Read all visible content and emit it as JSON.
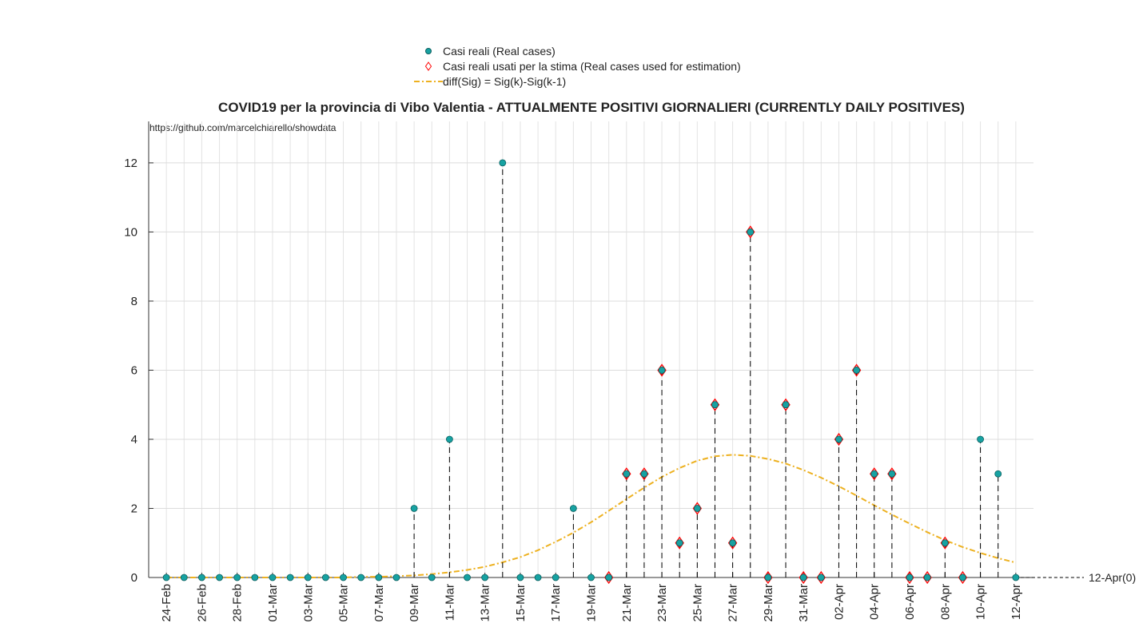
{
  "chart_data": {
    "type": "stem",
    "title": "COVID19 per la provincia di Vibo Valentia - ATTUALMENTE POSITIVI GIORNALIERI (CURRENTLY DAILY POSITIVES)",
    "source": "https://github.com/marcelchiarello/showdata",
    "annotation": "12-Apr(0)",
    "categories": [
      "24-Feb",
      null,
      "26-Feb",
      null,
      "28-Feb",
      null,
      "01-Mar",
      null,
      "03-Mar",
      null,
      "05-Mar",
      null,
      "07-Mar",
      null,
      "09-Mar",
      null,
      "11-Mar",
      null,
      "13-Mar",
      null,
      "15-Mar",
      null,
      "17-Mar",
      null,
      "19-Mar",
      null,
      "21-Mar",
      null,
      "23-Mar",
      null,
      "25-Mar",
      null,
      "27-Mar",
      null,
      "29-Mar",
      null,
      "31-Mar",
      null,
      "02-Apr",
      null,
      "04-Apr",
      null,
      "06-Apr",
      null,
      "08-Apr",
      null,
      "10-Apr",
      null,
      "12-Apr"
    ],
    "series": [
      {
        "name": "Casi reali (Real cases)",
        "color": "#17a2a2",
        "marker": "circle",
        "values": [
          0,
          0,
          0,
          0,
          0,
          0,
          0,
          0,
          0,
          0,
          0,
          0,
          0,
          0,
          2,
          0,
          4,
          0,
          0,
          12,
          0,
          0,
          0,
          2,
          0,
          0,
          3,
          3,
          6,
          1,
          2,
          5,
          1,
          10,
          0,
          5,
          0,
          0,
          4,
          6,
          3,
          3,
          0,
          0,
          1,
          0,
          4,
          3,
          0
        ]
      },
      {
        "name": "Casi reali usati per la stima (Real cases used for estimation)",
        "color": "#ff0000",
        "marker": "diamond",
        "values": [
          null,
          null,
          null,
          null,
          null,
          null,
          null,
          null,
          null,
          null,
          null,
          null,
          null,
          null,
          null,
          null,
          null,
          null,
          null,
          null,
          null,
          null,
          null,
          null,
          null,
          0,
          3,
          3,
          6,
          1,
          2,
          5,
          1,
          10,
          0,
          5,
          0,
          0,
          4,
          6,
          3,
          3,
          0,
          0,
          1,
          0,
          null,
          null,
          null
        ]
      },
      {
        "name": "diff(Sig) = Sig(k)-Sig(k-1)",
        "color": "#edb120",
        "marker": "line",
        "values": [
          0,
          0,
          0,
          0,
          0,
          0,
          0,
          0,
          0,
          0,
          0,
          0.02,
          0.02,
          0.04,
          0.06,
          0.1,
          0.15,
          0.22,
          0.31,
          0.44,
          0.59,
          0.79,
          1.03,
          1.3,
          1.6,
          1.93,
          2.27,
          2.6,
          2.91,
          3.17,
          3.38,
          3.51,
          3.55,
          3.52,
          3.43,
          3.3,
          3.11,
          2.89,
          2.64,
          2.37,
          2.09,
          1.82,
          1.56,
          1.31,
          1.08,
          0.88,
          0.71,
          0.56,
          0.43
        ]
      }
    ],
    "xlim": [
      -1,
      49
    ],
    "ylim": [
      0,
      13.2
    ],
    "yticks": [
      0,
      2,
      4,
      6,
      8,
      10,
      12
    ],
    "grid": true
  }
}
